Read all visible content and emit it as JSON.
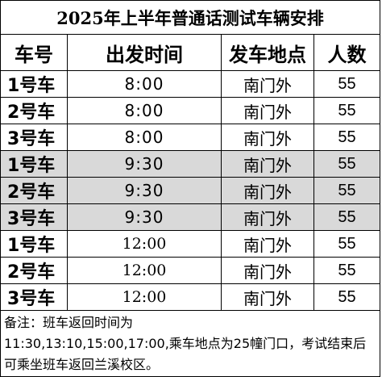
{
  "title": "2025年上半年普通话测试车辆安排",
  "headers": {
    "bus": "车号",
    "time": "出发时间",
    "place": "发车地点",
    "count": "人数"
  },
  "rows": [
    {
      "bus": "1号车",
      "time": "8:00",
      "place": "南门外",
      "count": "55",
      "shaded": false
    },
    {
      "bus": "2号车",
      "time": "8:00",
      "place": "南门外",
      "count": "55",
      "shaded": false
    },
    {
      "bus": "3号车",
      "time": "8:00",
      "place": "南门外",
      "count": "55",
      "shaded": false
    },
    {
      "bus": "1号车",
      "time": "9:30",
      "place": "南门外",
      "count": "55",
      "shaded": true
    },
    {
      "bus": "2号车",
      "time": "9:30",
      "place": "南门外",
      "count": "55",
      "shaded": true
    },
    {
      "bus": "3号车",
      "time": "9:30",
      "place": "南门外",
      "count": "55",
      "shaded": true
    },
    {
      "bus": "1号车",
      "time": "12:00",
      "place": "南门外",
      "count": "55",
      "shaded": false
    },
    {
      "bus": "2号车",
      "time": "12:00",
      "place": "南门外",
      "count": "55",
      "shaded": false
    },
    {
      "bus": "3号车",
      "time": "12:00",
      "place": "南门外",
      "count": "55",
      "shaded": false
    }
  ],
  "note": {
    "line1": "备注：班车返回时间为",
    "line2": "11:30,13:10,15:00,17:00,乘车地点为25幢门口，考试结束后可乘坐班车返回兰溪校区。"
  },
  "shade_color": "#d9d9d9"
}
